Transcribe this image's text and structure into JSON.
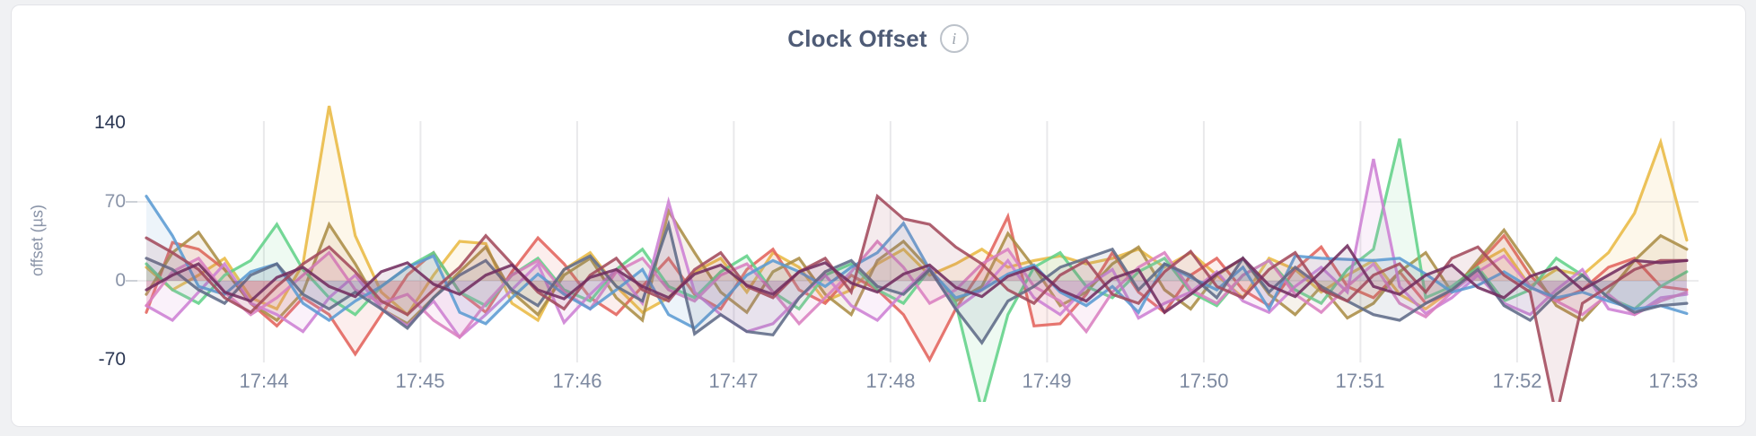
{
  "header": {
    "info_glyph": "i"
  },
  "chart_data": {
    "type": "line",
    "title": "Clock Offset",
    "ylabel": "offset (µs)",
    "xlabel": "",
    "legend": "none",
    "grid": true,
    "x_start": "17:43:15",
    "x_interval_seconds": 10,
    "points_per_series": 60,
    "x_ticks": [
      "17:44",
      "17:45",
      "17:46",
      "17:47",
      "17:48",
      "17:49",
      "17:50",
      "17:51",
      "17:52",
      "17:53"
    ],
    "y_ticks": [
      140,
      70,
      0,
      -70
    ],
    "y_gridlines": [
      70,
      0
    ],
    "ylim": [
      -105,
      160
    ],
    "series": [
      {
        "color": "#e9b943",
        "values": [
          12,
          -8,
          5,
          20,
          -15,
          -25,
          15,
          155,
          40,
          -10,
          -30,
          5,
          35,
          33,
          -20,
          -35,
          10,
          25,
          -5,
          -28,
          -15,
          8,
          20,
          -10,
          25,
          12,
          -18,
          -8,
          15,
          28,
          5,
          15,
          28,
          12,
          18,
          22,
          15,
          20,
          28,
          12,
          25,
          5,
          -15,
          20,
          10,
          -10,
          5,
          18,
          -12,
          -25,
          -8,
          15,
          28,
          -5,
          10,
          5,
          25,
          60,
          123,
          36
        ]
      },
      {
        "color": "#e2635c",
        "values": [
          -28,
          34,
          28,
          10,
          -20,
          -40,
          -15,
          -30,
          -65,
          -30,
          5,
          25,
          -10,
          -28,
          8,
          38,
          15,
          -15,
          -30,
          -5,
          20,
          -12,
          -25,
          10,
          28,
          -8,
          -20,
          5,
          -8,
          -30,
          -70,
          -25,
          10,
          57,
          -40,
          -38,
          -12,
          25,
          -10,
          -28,
          5,
          20,
          -8,
          -22,
          10,
          30,
          -5,
          -15,
          8,
          -20,
          -10,
          15,
          40,
          5,
          -18,
          -8,
          12,
          20,
          -5,
          -8
        ]
      },
      {
        "color": "#ab8d45",
        "values": [
          -12,
          25,
          43,
          10,
          -20,
          -35,
          -10,
          50,
          15,
          -25,
          -38,
          -15,
          8,
          30,
          -10,
          -30,
          5,
          20,
          -15,
          -35,
          62,
          25,
          -10,
          -28,
          8,
          20,
          -12,
          -30,
          18,
          35,
          10,
          -18,
          -5,
          42,
          12,
          -22,
          -10,
          15,
          30,
          -8,
          -25,
          5,
          20,
          -12,
          -30,
          -5,
          -33,
          -20,
          8,
          25,
          -10,
          18,
          45,
          12,
          -22,
          -35,
          -10,
          18,
          40,
          28
        ]
      },
      {
        "color": "#62d189",
        "values": [
          15,
          -8,
          -20,
          5,
          18,
          50,
          10,
          -15,
          -30,
          -5,
          12,
          25,
          -10,
          -22,
          5,
          20,
          -8,
          -18,
          10,
          28,
          -5,
          -15,
          8,
          22,
          -10,
          -25,
          5,
          15,
          -8,
          -20,
          10,
          -20,
          -115,
          -30,
          12,
          25,
          -5,
          -15,
          8,
          20,
          -10,
          -22,
          5,
          18,
          -8,
          -20,
          10,
          28,
          126,
          -15,
          -5,
          12,
          -18,
          -8,
          20,
          5,
          -15,
          -25,
          -5,
          8
        ]
      },
      {
        "color": "#cd7fd4",
        "values": [
          -22,
          -35,
          -10,
          15,
          -20,
          -30,
          -45,
          -15,
          5,
          -25,
          -40,
          -18,
          -50,
          -30,
          -8,
          15,
          -37,
          -12,
          10,
          -20,
          70,
          -10,
          -30,
          -45,
          -38,
          -15,
          5,
          -22,
          -35,
          -10,
          12,
          -25,
          -8,
          18,
          -15,
          -30,
          -5,
          10,
          -33,
          -20,
          -10,
          8,
          -18,
          -28,
          -5,
          12,
          -10,
          108,
          -5,
          -29,
          -15,
          5,
          -20,
          -30,
          -8,
          10,
          -25,
          -30,
          -15,
          -12
        ]
      },
      {
        "color": "#d97fc0",
        "values": [
          -22,
          8,
          20,
          -10,
          -30,
          -15,
          5,
          25,
          -8,
          -20,
          -12,
          -35,
          -50,
          -20,
          5,
          18,
          -10,
          -25,
          8,
          20,
          -8,
          -18,
          5,
          15,
          -10,
          -38,
          -15,
          8,
          35,
          12,
          -20,
          -8,
          15,
          28,
          -5,
          -18,
          -45,
          -10,
          12,
          25,
          -8,
          -20,
          5,
          18,
          -12,
          -28,
          -5,
          15,
          -20,
          -32,
          -10,
          8,
          22,
          -5,
          -18,
          -30,
          -12,
          -30,
          -18,
          -10
        ]
      },
      {
        "color": "#5b9bd3",
        "values": [
          75,
          40,
          -5,
          -12,
          8,
          15,
          -20,
          -35,
          -18,
          -5,
          12,
          22,
          -28,
          -38,
          -15,
          6,
          -12,
          -25,
          -8,
          10,
          -30,
          -42,
          -20,
          5,
          18,
          8,
          -5,
          12,
          25,
          51,
          10,
          -15,
          -8,
          6,
          14,
          -10,
          -22,
          -5,
          -28,
          15,
          3,
          -8,
          12,
          -25,
          22,
          20,
          19,
          18,
          20,
          6,
          -10,
          -4,
          8,
          -6,
          -15,
          -10,
          -18,
          -25,
          -22,
          -29
        ]
      },
      {
        "color": "#5f6b87",
        "values": [
          20,
          10,
          -8,
          -20,
          5,
          15,
          -12,
          -25,
          -10,
          -25,
          -42,
          -15,
          5,
          18,
          -8,
          -22,
          10,
          22,
          -5,
          -18,
          50,
          -47,
          -30,
          -45,
          -48,
          -15,
          8,
          18,
          -5,
          -12,
          10,
          -25,
          -55,
          -18,
          -5,
          12,
          20,
          28,
          -8,
          15,
          5,
          -15,
          20,
          -10,
          12,
          -5,
          -18,
          -30,
          -35,
          -20,
          -8,
          10,
          -22,
          -35,
          -12,
          5,
          -15,
          -28,
          -22,
          -20
        ]
      },
      {
        "color": "#a34a5c",
        "values": [
          38,
          25,
          10,
          -15,
          -28,
          -5,
          15,
          30,
          8,
          -18,
          -30,
          -8,
          12,
          40,
          15,
          -10,
          -25,
          5,
          20,
          -8,
          -18,
          10,
          25,
          -5,
          -15,
          8,
          20,
          -10,
          75,
          55,
          50,
          30,
          15,
          -8,
          -20,
          5,
          18,
          -12,
          -20,
          8,
          26,
          -5,
          -15,
          10,
          25,
          -8,
          -18,
          5,
          15,
          -10,
          20,
          30,
          5,
          -10,
          -120,
          -20,
          -5,
          10,
          18,
          18
        ]
      },
      {
        "color": "#722e60",
        "values": [
          -8,
          5,
          15,
          -10,
          -18,
          3,
          12,
          -5,
          -14,
          8,
          16,
          -3,
          -12,
          5,
          14,
          -8,
          -16,
          3,
          10,
          -5,
          -15,
          6,
          14,
          -4,
          -12,
          8,
          16,
          -2,
          -10,
          6,
          14,
          -6,
          -14,
          4,
          12,
          -8,
          -18,
          2,
          10,
          -28,
          -12,
          6,
          20,
          -4,
          -14,
          8,
          31,
          -5,
          -12,
          5,
          14,
          -6,
          -15,
          4,
          12,
          -8,
          5,
          18,
          16,
          18
        ]
      }
    ]
  }
}
